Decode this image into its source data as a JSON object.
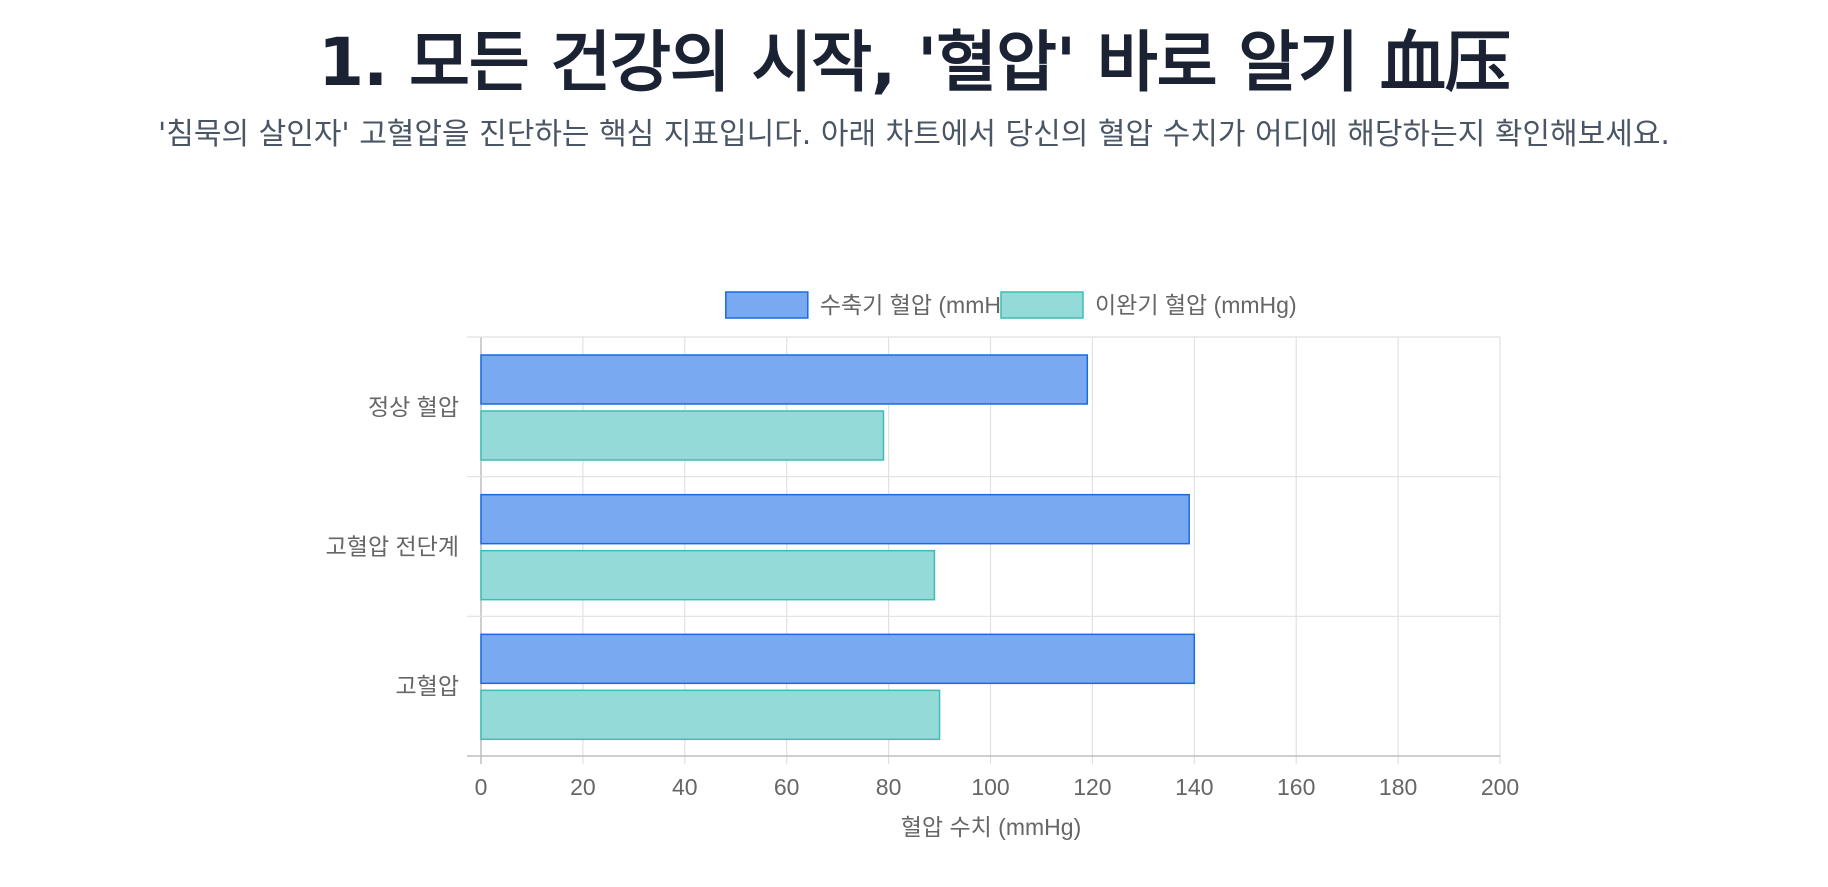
{
  "header": {
    "title": "1. 모든 건강의 시작, '혈압' 바로 알기 血压",
    "subtitle": "'침묵의 살인자' 고혈압을 진단하는 핵심 지표입니다. 아래 차트에서 당신의 혈압 수치가 어디에 해당하는지 확인해보세요."
  },
  "chart_data": {
    "type": "bar",
    "orientation": "horizontal",
    "categories": [
      "정상 혈압",
      "고혈압 전단계",
      "고혈압"
    ],
    "series": [
      {
        "name": "수축기 혈압 (mmHg)",
        "values": [
          119,
          139,
          140
        ],
        "color": "#78a9f1",
        "border": "#1a6be0"
      },
      {
        "name": "이완기 혈압 (mmHg)",
        "values": [
          79,
          89,
          90
        ],
        "color": "#94dad9",
        "border": "#3fbcb5"
      }
    ],
    "xlabel": "혈압 수치 (mmHg)",
    "ylabel": "",
    "xlim": [
      0,
      200
    ],
    "ticks": [
      0,
      20,
      40,
      60,
      80,
      100,
      120,
      140,
      160,
      180,
      200
    ],
    "grid": true,
    "legend": "top"
  }
}
